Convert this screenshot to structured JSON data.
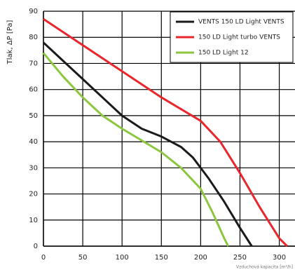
{
  "chart_data": {
    "type": "line",
    "y_label": "Tlak, ΔP [Pa]",
    "x_label": "Vzduchová kapacita [m³/h]",
    "xlim": [
      0,
      320
    ],
    "ylim": [
      0,
      90
    ],
    "xticks": [
      0,
      50,
      100,
      150,
      200,
      250,
      300
    ],
    "yticks": [
      0,
      10,
      20,
      30,
      40,
      50,
      60,
      70,
      80,
      90
    ],
    "grid": true,
    "legend": "upper right",
    "series": [
      {
        "name": "VENTS 150 LD Light VENTS",
        "color": "#1a1a1a",
        "x": [
          0,
          25,
          50,
          75,
          100,
          125,
          150,
          175,
          190,
          210,
          230,
          250,
          265
        ],
        "values": [
          78,
          71,
          64,
          57,
          50,
          45,
          42,
          38,
          34,
          26,
          17,
          7,
          0
        ]
      },
      {
        "name": "150 LD Light turbo VENTS",
        "color": "#e8262b",
        "x": [
          0,
          50,
          100,
          150,
          200,
          225,
          250,
          275,
          300,
          310
        ],
        "values": [
          87,
          77,
          67,
          57,
          48,
          40,
          28,
          15,
          3,
          0
        ]
      },
      {
        "name": "150 LD Light 12",
        "color": "#8dc63f",
        "x": [
          0,
          25,
          50,
          75,
          100,
          150,
          175,
          200,
          215,
          230,
          235
        ],
        "values": [
          74,
          65,
          57,
          50,
          45,
          36,
          30,
          22,
          13,
          3,
          0
        ]
      }
    ]
  }
}
